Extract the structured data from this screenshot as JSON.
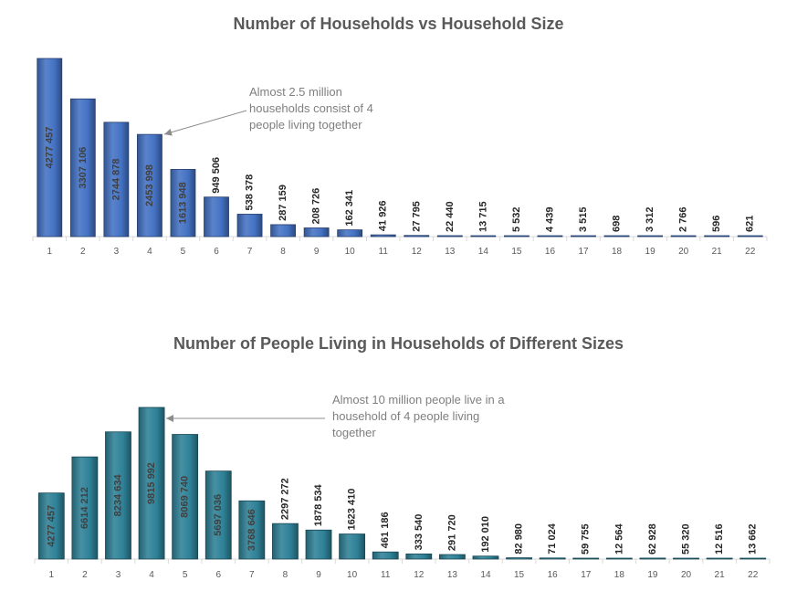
{
  "chart_data": [
    {
      "type": "bar",
      "title": "Number of Households vs Household Size",
      "xlabel": "",
      "ylabel": "",
      "ylim": [
        0,
        4277457
      ],
      "categories": [
        "1",
        "2",
        "3",
        "4",
        "5",
        "6",
        "7",
        "8",
        "9",
        "10",
        "11",
        "12",
        "13",
        "14",
        "15",
        "16",
        "17",
        "18",
        "19",
        "20",
        "21",
        "22"
      ],
      "values": [
        4277457,
        3307106,
        2744878,
        2453998,
        1613948,
        949506,
        538378,
        287159,
        208726,
        162341,
        41926,
        27795,
        22440,
        13715,
        5532,
        4439,
        3515,
        698,
        3312,
        2766,
        596,
        621
      ],
      "labels": [
        "4277 457",
        "3307 106",
        "2744 878",
        "2453 998",
        "1613 948",
        "949 506",
        "538 378",
        "287 159",
        "208 726",
        "162 341",
        "41 926",
        "27 795",
        "22 440",
        "13 715",
        "5 532",
        "4 439",
        "3 515",
        "698",
        "3 312",
        "2 766",
        "596",
        "621"
      ],
      "color": "#4472c4",
      "annotation": {
        "text": "Almost 2.5 million households consist of 4 people living together",
        "category": "4"
      }
    },
    {
      "type": "bar",
      "title": "Number of People Living in Households of Different Sizes",
      "xlabel": "",
      "ylabel": "",
      "ylim": [
        0,
        9815992
      ],
      "categories": [
        "1",
        "2",
        "3",
        "4",
        "5",
        "6",
        "7",
        "8",
        "9",
        "10",
        "11",
        "12",
        "13",
        "14",
        "15",
        "16",
        "17",
        "18",
        "19",
        "20",
        "21",
        "22"
      ],
      "values": [
        4277457,
        6614212,
        8234634,
        9815992,
        8069740,
        5697036,
        3768646,
        2297272,
        1878534,
        1623410,
        461186,
        333540,
        291720,
        192010,
        82980,
        71024,
        59755,
        12564,
        62928,
        55320,
        12516,
        13662
      ],
      "labels": [
        "4277 457",
        "6614 212",
        "8234 634",
        "9815 992",
        "8069 740",
        "5697 036",
        "3768 646",
        "2297 272",
        "1878 534",
        "1623 410",
        "461 186",
        "333 540",
        "291 720",
        "192 010",
        "82 980",
        "71 024",
        "59 755",
        "12 564",
        "62 928",
        "55 320",
        "12 516",
        "13 662"
      ],
      "color": "#2e8197",
      "annotation": {
        "text": "Almost 10 million people live in a household of 4 people living together",
        "category": "4"
      }
    }
  ]
}
